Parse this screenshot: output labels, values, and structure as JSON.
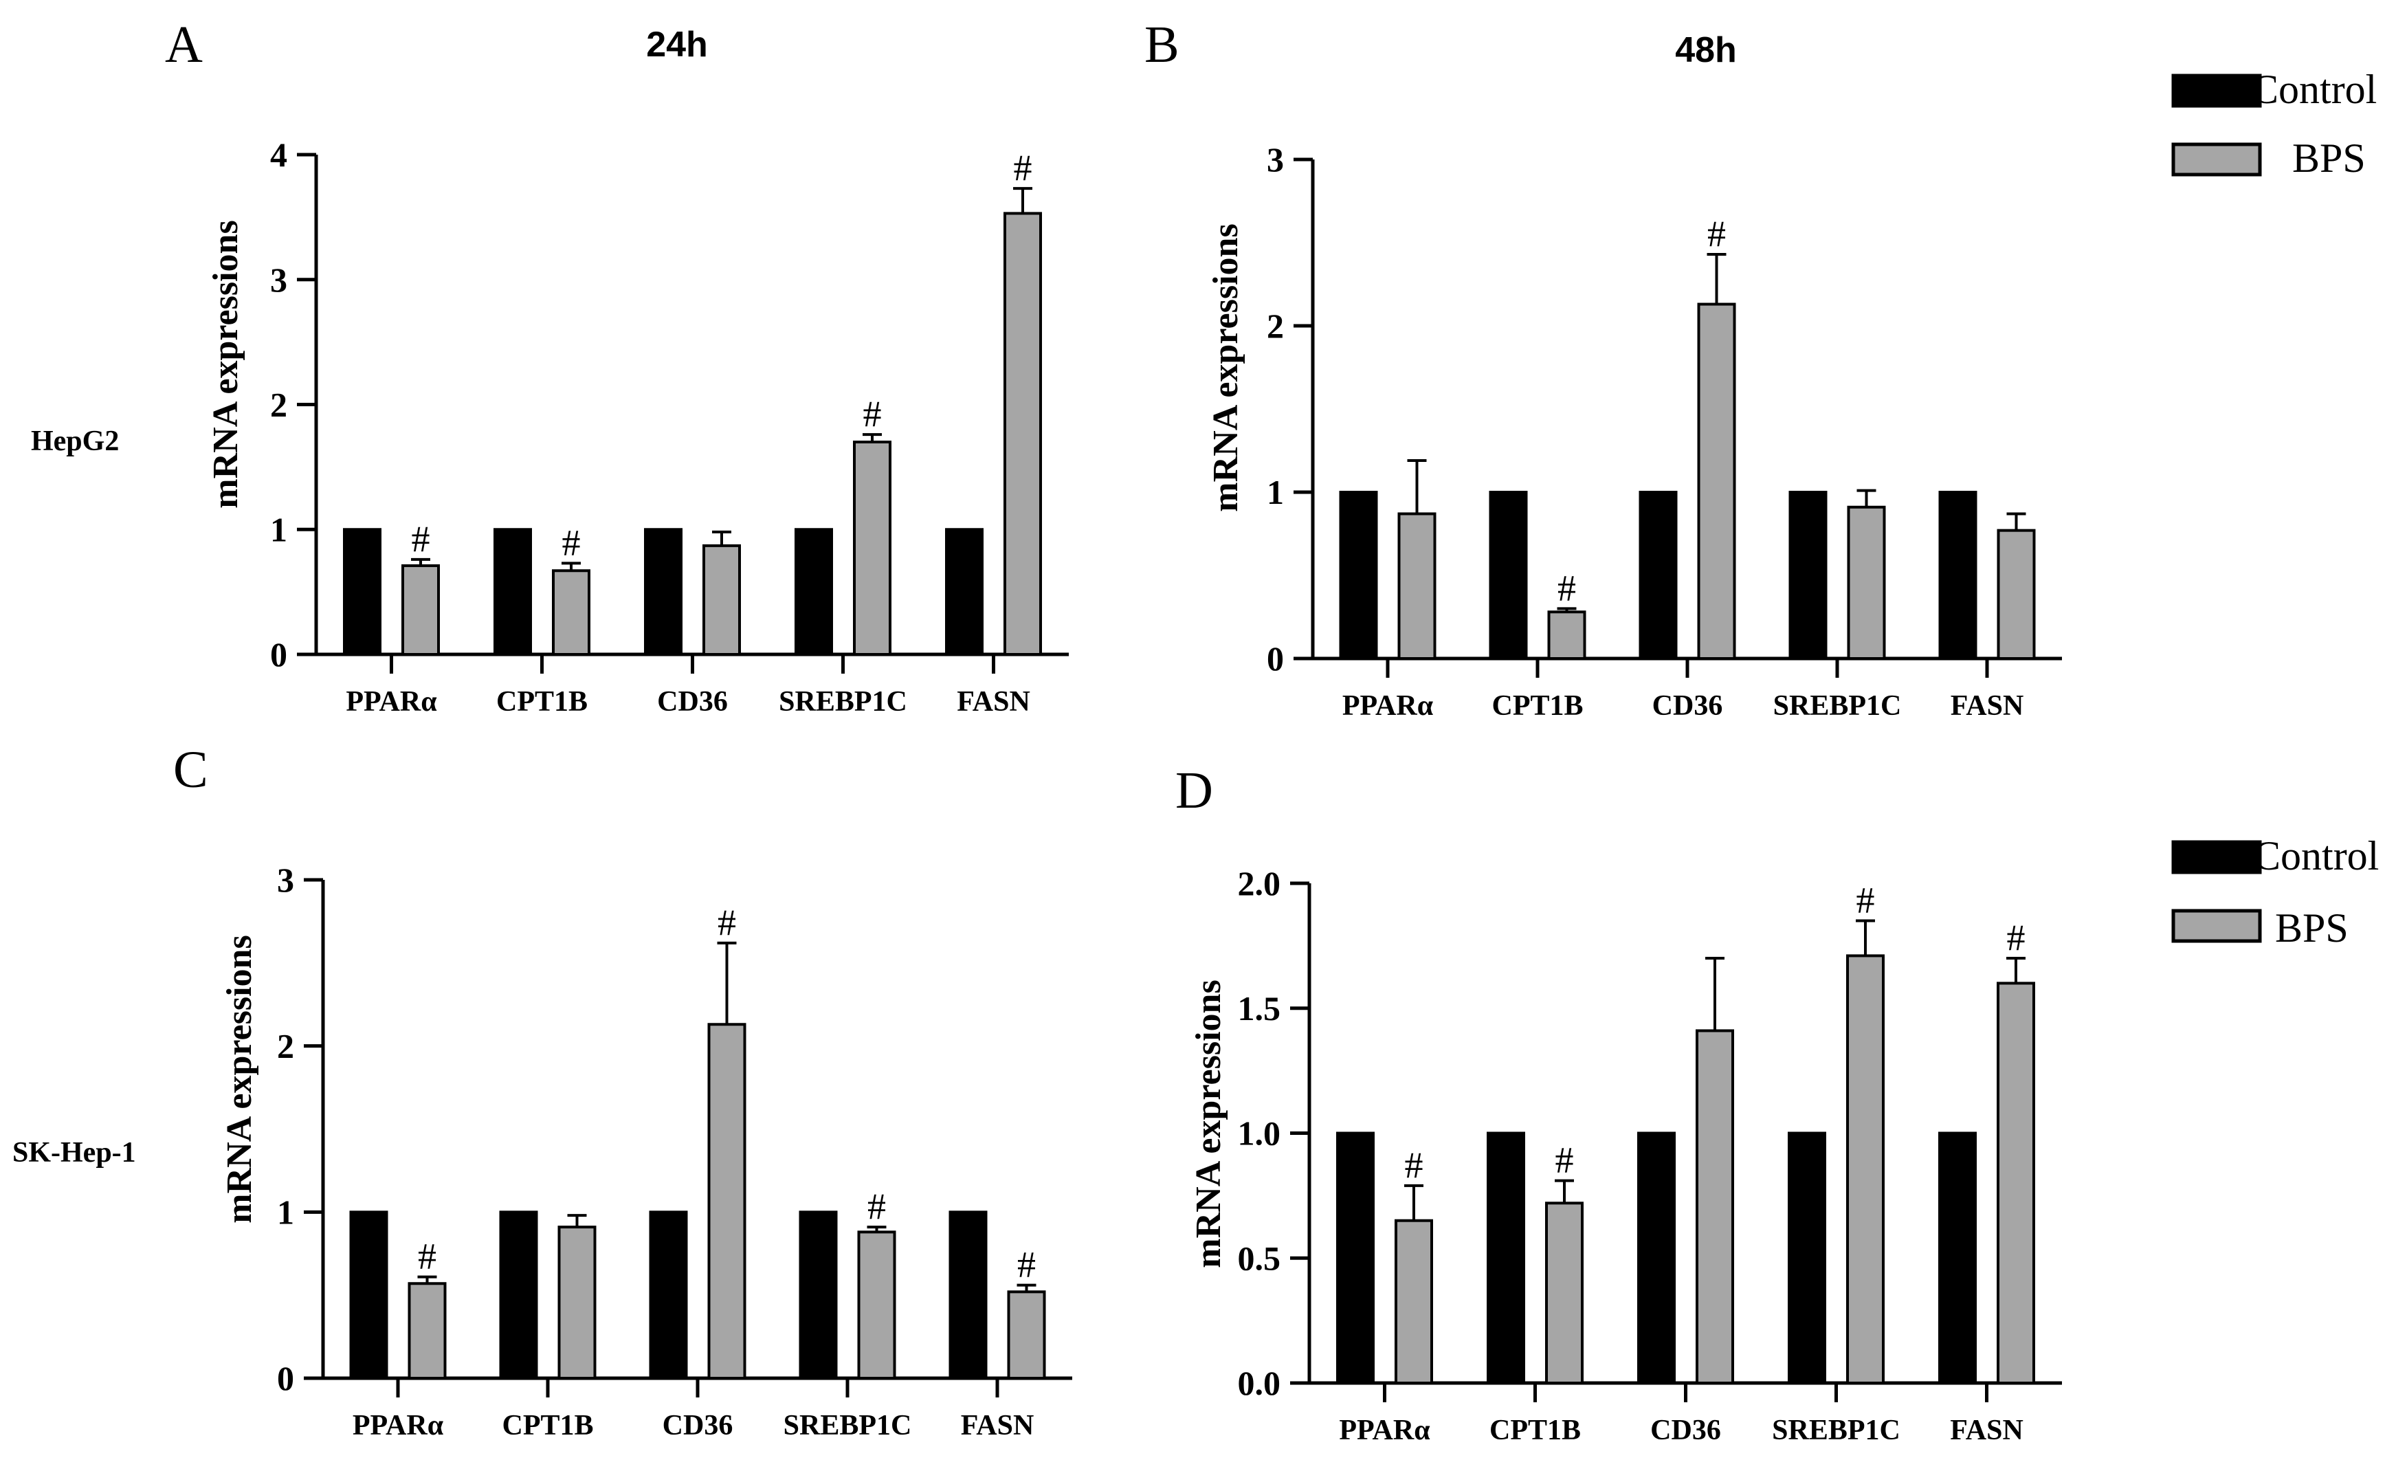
{
  "legend_top": {
    "items": [
      {
        "label": "Control",
        "color": "#000000"
      },
      {
        "label": "BPS",
        "color": "#a6a6a6"
      }
    ]
  },
  "legend_bottom": {
    "items": [
      {
        "label": "Control",
        "color": "#000000"
      },
      {
        "label": " BPS",
        "color": "#a6a6a6"
      }
    ]
  },
  "row_labels": {
    "top": "HepG2",
    "bottom": "SK-Hep-1"
  },
  "chart_data": [
    {
      "panel": "A",
      "title": "24h",
      "type": "bar",
      "ylabel": "mRNA expressions",
      "ylim": [
        0,
        4
      ],
      "yticks": [
        "0",
        "1",
        "2",
        "3",
        "4"
      ],
      "categories": [
        "PPARα",
        "CPT1B",
        "CD36",
        "SREBP1C",
        "FASN"
      ],
      "series": [
        {
          "name": "Control",
          "values": [
            1,
            1,
            1,
            1,
            1
          ],
          "errors": [
            0,
            0,
            0,
            0,
            0
          ],
          "significance": [
            "",
            "",
            "",
            "",
            ""
          ]
        },
        {
          "name": "BPS",
          "values": [
            0.71,
            0.67,
            0.87,
            1.7,
            3.53
          ],
          "errors": [
            0.05,
            0.06,
            0.11,
            0.06,
            0.2
          ],
          "significance": [
            "#",
            "#",
            "",
            "#",
            "#"
          ]
        }
      ]
    },
    {
      "panel": "B",
      "title": "48h",
      "type": "bar",
      "ylabel": "mRNA expressions",
      "ylim": [
        0,
        3
      ],
      "yticks": [
        "0",
        "1",
        "2",
        "3"
      ],
      "categories": [
        "PPARα",
        "CPT1B",
        "CD36",
        "SREBP1C",
        "FASN"
      ],
      "series": [
        {
          "name": "Control",
          "values": [
            1,
            1,
            1,
            1,
            1
          ],
          "errors": [
            0,
            0,
            0,
            0,
            0
          ],
          "significance": [
            "",
            "",
            "",
            "",
            ""
          ]
        },
        {
          "name": "BPS",
          "values": [
            0.87,
            0.28,
            2.13,
            0.91,
            0.77
          ],
          "errors": [
            0.32,
            0.02,
            0.3,
            0.1,
            0.1
          ],
          "significance": [
            "",
            "#",
            "#",
            "",
            ""
          ]
        }
      ]
    },
    {
      "panel": "C",
      "title": "",
      "type": "bar",
      "ylabel": "mRNA expressions",
      "ylim": [
        0,
        3
      ],
      "yticks": [
        "0",
        "1",
        "2",
        "3"
      ],
      "categories": [
        "PPARα",
        "CPT1B",
        "CD36",
        "SREBP1C",
        "FASN"
      ],
      "series": [
        {
          "name": "Control",
          "values": [
            1,
            1,
            1,
            1,
            1
          ],
          "errors": [
            0,
            0,
            0,
            0,
            0
          ],
          "significance": [
            "",
            "",
            "",
            "",
            ""
          ]
        },
        {
          "name": "BPS",
          "values": [
            0.57,
            0.91,
            2.13,
            0.88,
            0.52
          ],
          "errors": [
            0.04,
            0.07,
            0.49,
            0.03,
            0.04
          ],
          "significance": [
            "#",
            "",
            "#",
            "#",
            "#"
          ]
        }
      ]
    },
    {
      "panel": "D",
      "title": "",
      "type": "bar",
      "ylabel": "mRNA expressions",
      "ylim": [
        0,
        2
      ],
      "yticks": [
        "0.0",
        "0.5",
        "1.0",
        "1.5",
        "2.0"
      ],
      "categories": [
        "PPARα",
        "CPT1B",
        "CD36",
        "SREBP1C",
        "FASN"
      ],
      "series": [
        {
          "name": "Control",
          "values": [
            1,
            1,
            1,
            1,
            1
          ],
          "errors": [
            0,
            0,
            0,
            0,
            0
          ],
          "significance": [
            "",
            "",
            "",
            "",
            ""
          ]
        },
        {
          "name": "BPS",
          "values": [
            0.65,
            0.72,
            1.41,
            1.71,
            1.6
          ],
          "errors": [
            0.14,
            0.09,
            0.29,
            0.14,
            0.1
          ],
          "significance": [
            "#",
            "#",
            "",
            "#",
            "#"
          ]
        }
      ]
    }
  ]
}
